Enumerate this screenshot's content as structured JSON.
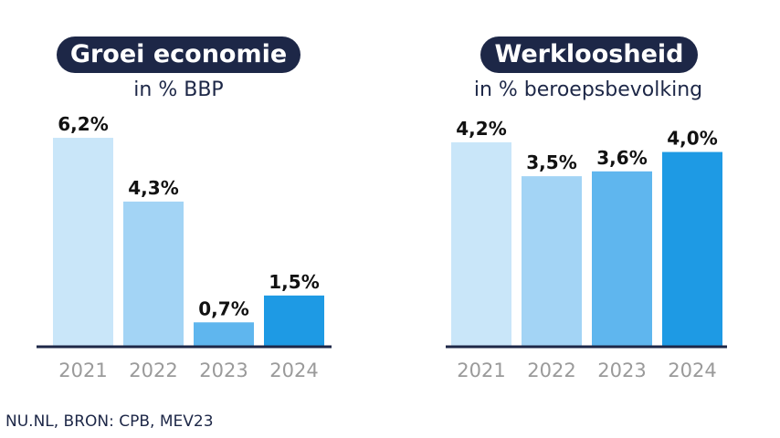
{
  "chart_data": [
    {
      "type": "bar",
      "title": "Groei economie",
      "subtitle": "in % BBP",
      "categories": [
        "2021",
        "2022",
        "2023",
        "2024"
      ],
      "values": [
        6.2,
        4.3,
        0.7,
        1.5
      ],
      "value_labels": [
        "6,2%",
        "4,3%",
        "0,7%",
        "1,5%"
      ],
      "colors": [
        "#c9e6f9",
        "#a3d4f5",
        "#5fb6ee",
        "#1e9ae4"
      ],
      "ylim": [
        0,
        6.5
      ],
      "grid": false
    },
    {
      "type": "bar",
      "title": "Werkloosheid",
      "subtitle": "in % beroepsbevolking",
      "categories": [
        "2021",
        "2022",
        "2023",
        "2024"
      ],
      "values": [
        4.2,
        3.5,
        3.6,
        4.0
      ],
      "value_labels": [
        "4,2%",
        "3,5%",
        "3,6%",
        "4,0%"
      ],
      "colors": [
        "#c9e6f9",
        "#a3d4f5",
        "#5fb6ee",
        "#1e9ae4"
      ],
      "ylim": [
        0,
        4.5
      ],
      "grid": false
    }
  ],
  "source": "NU.NL, BRON: CPB, MEV23",
  "colors": {
    "title_bg": "#1d2747",
    "axis": "#1d2747",
    "tick_text": "#9a9a9a"
  }
}
